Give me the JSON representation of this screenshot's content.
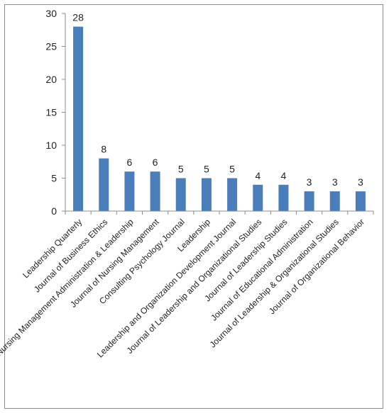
{
  "chart_data": {
    "type": "bar",
    "title": "",
    "xlabel": "",
    "ylabel": "",
    "ylim": [
      0,
      30
    ],
    "yticks": [
      0,
      5,
      10,
      15,
      20,
      25,
      30
    ],
    "grid": false,
    "legend": "none",
    "bar_color": "#4a7ebb",
    "categories": [
      "Leadership Quarterly",
      "Journal of Business Ethics",
      "Nursing Management Administration & Leadership",
      "Journal of Nursing Management",
      "Consulting Psychology Journal",
      "Leadership",
      "Leadership and Organization Development Journal",
      "Journal of Leadership and Organizational Studies",
      "Journal of Leadership Studies",
      "Journal of Educational Administration",
      "Journal of Leadership & Organizational Studies",
      "Journal of Organizational Behavior"
    ],
    "values": [
      28,
      8,
      6,
      6,
      5,
      5,
      5,
      4,
      4,
      3,
      3,
      3
    ]
  }
}
